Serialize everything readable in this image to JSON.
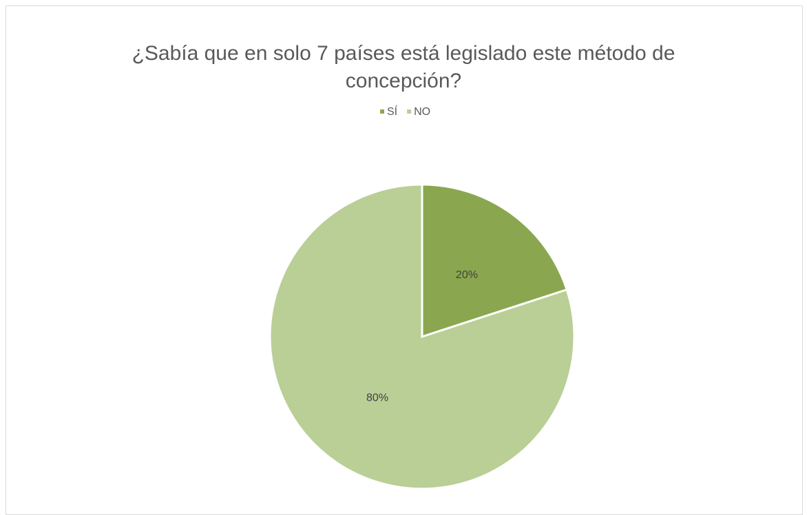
{
  "chart_data": {
    "type": "pie",
    "title": "¿Sabía que en solo 7 países está legislado este método de concepción?",
    "categories": [
      "SÍ",
      "NO"
    ],
    "values": [
      20,
      80
    ],
    "value_labels": [
      "20%",
      "80%"
    ],
    "colors": [
      "#8aa74f",
      "#b9cf96"
    ],
    "legend": "top"
  }
}
